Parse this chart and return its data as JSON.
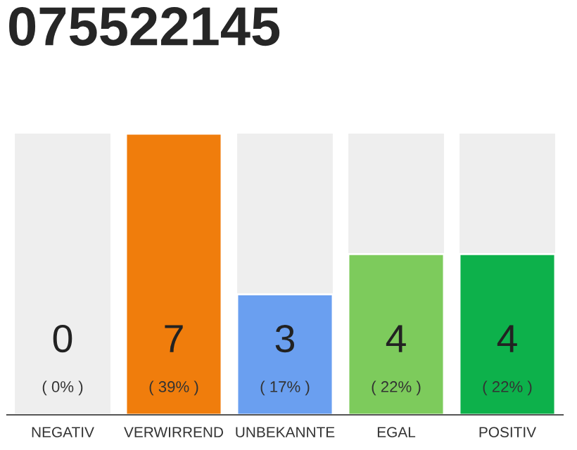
{
  "chart_data": {
    "type": "bar",
    "title": "075522145",
    "categories": [
      "NEGATIV",
      "VERWIRREND",
      "UNBEKANNTE",
      "EGAL",
      "POSITIV"
    ],
    "values": [
      0,
      7,
      3,
      4,
      4
    ],
    "colors": [
      null,
      "#f07d0c",
      "#6a9ff0",
      "#7dcb5c",
      "#0db14b"
    ],
    "value_labels": [
      "0\n( 0% )",
      "7\n( 39% )",
      "3\n( 17% )",
      "4\n( 22% )",
      "4\n( 22% )"
    ],
    "ylim": [
      0,
      7
    ],
    "tick_labels": "x",
    "grid": false,
    "legend": false
  }
}
